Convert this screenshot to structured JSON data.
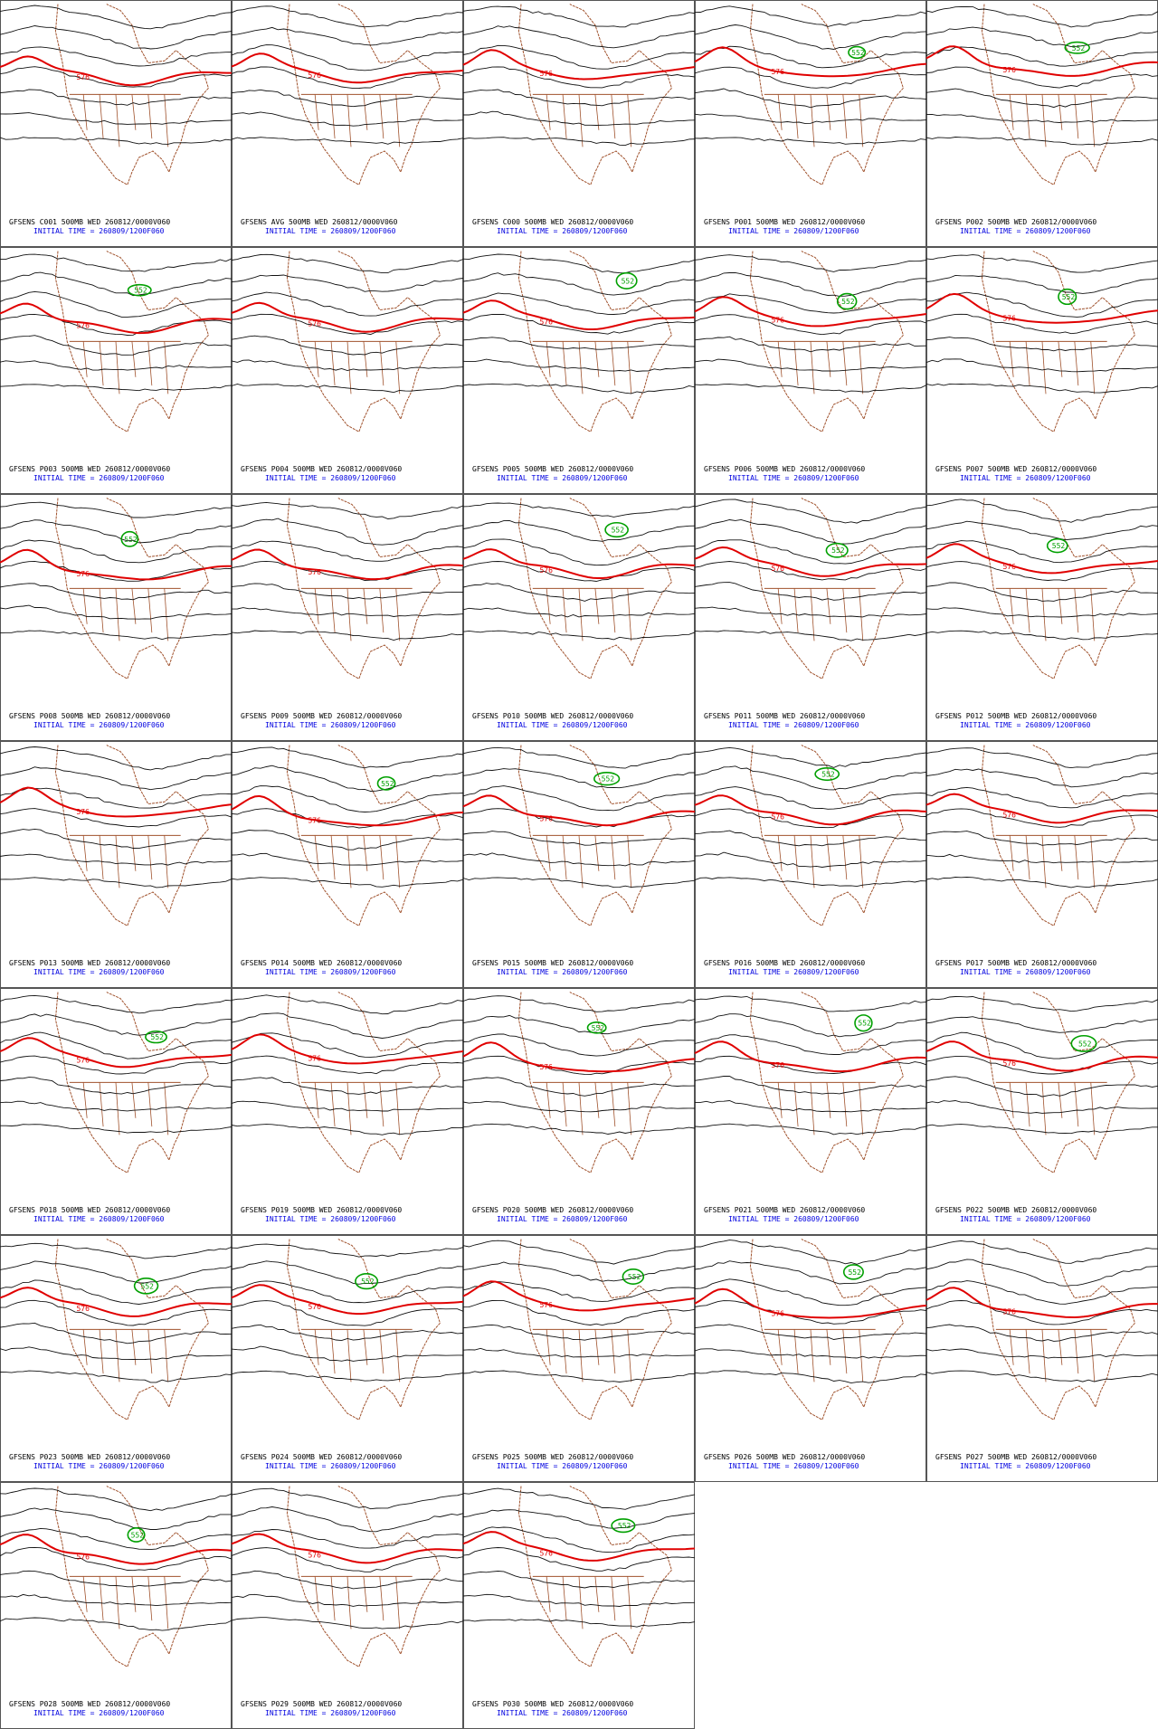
{
  "panels": [
    {
      "title": "GFSENS C001 500MB WED 260812/0000V060",
      "subtitle": "INITIAL TIME = 260809/1200F060",
      "labels": [
        "576"
      ]
    },
    {
      "title": "GFSENS AVG 500MB WED 260812/0000V060",
      "subtitle": "INITIAL TIME = 260809/1200F060",
      "labels": [
        "576"
      ]
    },
    {
      "title": "GFSENS C000 500MB WED 260812/0000V060",
      "subtitle": "INITIAL TIME = 260809/1200F060",
      "labels": [
        "576"
      ]
    },
    {
      "title": "GFSENS P001 500MB WED 260812/0000V060",
      "subtitle": "INITIAL TIME = 260809/1200F060",
      "labels": [
        "576",
        "552"
      ]
    },
    {
      "title": "GFSENS P002 500MB WED 260812/0000V060",
      "subtitle": "INITIAL TIME = 260809/1200F060",
      "labels": [
        "576",
        "552"
      ]
    },
    {
      "title": "GFSENS P003 500MB WED 260812/0000V060",
      "subtitle": "INITIAL TIME = 260809/1200F060",
      "labels": [
        "576",
        "552"
      ]
    },
    {
      "title": "GFSENS P004 500MB WED 260812/0000V060",
      "subtitle": "INITIAL TIME = 260809/1200F060",
      "labels": [
        "576"
      ]
    },
    {
      "title": "GFSENS P005 500MB WED 260812/0000V060",
      "subtitle": "INITIAL TIME = 260809/1200F060",
      "labels": [
        "576",
        "552"
      ]
    },
    {
      "title": "GFSENS P006 500MB WED 260812/0000V060",
      "subtitle": "INITIAL TIME = 260809/1200F060",
      "labels": [
        "576",
        "552"
      ]
    },
    {
      "title": "GFSENS P007 500MB WED 260812/0000V060",
      "subtitle": "INITIAL TIME = 260809/1200F060",
      "labels": [
        "576",
        "552"
      ]
    },
    {
      "title": "GFSENS P008 500MB WED 260812/0000V060",
      "subtitle": "INITIAL TIME = 260809/1200F060",
      "labels": [
        "576",
        "552"
      ]
    },
    {
      "title": "GFSENS P009 500MB WED 260812/0000V060",
      "subtitle": "INITIAL TIME = 260809/1200F060",
      "labels": [
        "576"
      ]
    },
    {
      "title": "GFSENS P010 500MB WED 260812/0000V060",
      "subtitle": "INITIAL TIME = 260809/1200F060",
      "labels": [
        "576",
        "552"
      ]
    },
    {
      "title": "GFSENS P011 500MB WED 260812/0000V060",
      "subtitle": "INITIAL TIME = 260809/1200F060",
      "labels": [
        "576",
        "552"
      ]
    },
    {
      "title": "GFSENS P012 500MB WED 260812/0000V060",
      "subtitle": "INITIAL TIME = 260809/1200F060",
      "labels": [
        "576",
        "552"
      ]
    },
    {
      "title": "GFSENS P013 500MB WED 260812/0000V060",
      "subtitle": "INITIAL TIME = 260809/1200F060",
      "labels": [
        "576"
      ]
    },
    {
      "title": "GFSENS P014 500MB WED 260812/0000V060",
      "subtitle": "INITIAL TIME = 260809/1200F060",
      "labels": [
        "576",
        "552"
      ]
    },
    {
      "title": "GFSENS P015 500MB WED 260812/0000V060",
      "subtitle": "INITIAL TIME = 260809/1200F060",
      "labels": [
        "576",
        "552"
      ]
    },
    {
      "title": "GFSENS P016 500MB WED 260812/0000V060",
      "subtitle": "INITIAL TIME = 260809/1200F060",
      "labels": [
        "576",
        "552"
      ]
    },
    {
      "title": "GFSENS P017 500MB WED 260812/0000V060",
      "subtitle": "INITIAL TIME = 260809/1200F060",
      "labels": [
        "576"
      ]
    },
    {
      "title": "GFSENS P018 500MB WED 260812/0000V060",
      "subtitle": "INITIAL TIME = 260809/1200F060",
      "labels": [
        "576",
        "552"
      ]
    },
    {
      "title": "GFSENS P019 500MB WED 260812/0000V060",
      "subtitle": "INITIAL TIME = 260809/1200F060",
      "labels": [
        "576"
      ]
    },
    {
      "title": "GFSENS P020 500MB WED 260812/0000V060",
      "subtitle": "INITIAL TIME = 260809/1200F060",
      "labels": [
        "576",
        "552"
      ]
    },
    {
      "title": "GFSENS P021 500MB WED 260812/0000V060",
      "subtitle": "INITIAL TIME = 260809/1200F060",
      "labels": [
        "576",
        "552"
      ]
    },
    {
      "title": "GFSENS P022 500MB WED 260812/0000V060",
      "subtitle": "INITIAL TIME = 260809/1200F060",
      "labels": [
        "576",
        "552"
      ]
    },
    {
      "title": "GFSENS P023 500MB WED 260812/0000V060",
      "subtitle": "INITIAL TIME = 260809/1200F060",
      "labels": [
        "576",
        "552"
      ]
    },
    {
      "title": "GFSENS P024 500MB WED 260812/0000V060",
      "subtitle": "INITIAL TIME = 260809/1200F060",
      "labels": [
        "576",
        "552"
      ]
    },
    {
      "title": "GFSENS P025 500MB WED 260812/0000V060",
      "subtitle": "INITIAL TIME = 260809/1200F060",
      "labels": [
        "576",
        "552"
      ]
    },
    {
      "title": "GFSENS P026 500MB WED 260812/0000V060",
      "subtitle": "INITIAL TIME = 260809/1200F060",
      "labels": [
        "576",
        "552"
      ]
    },
    {
      "title": "GFSENS P027 500MB WED 260812/0000V060",
      "subtitle": "INITIAL TIME = 260809/1200F060",
      "labels": [
        "576"
      ]
    },
    {
      "title": "GFSENS P028 500MB WED 260812/0000V060",
      "subtitle": "INITIAL TIME = 260809/1200F060",
      "labels": [
        "576",
        "552"
      ]
    },
    {
      "title": "GFSENS P029 500MB WED 260812/0000V060",
      "subtitle": "INITIAL TIME = 260809/1200F060",
      "labels": [
        "576"
      ]
    },
    {
      "title": "GFSENS P030 500MB WED 260812/0000V060",
      "subtitle": "INITIAL TIME = 260809/1200F060",
      "labels": [
        "576",
        "552"
      ]
    }
  ]
}
